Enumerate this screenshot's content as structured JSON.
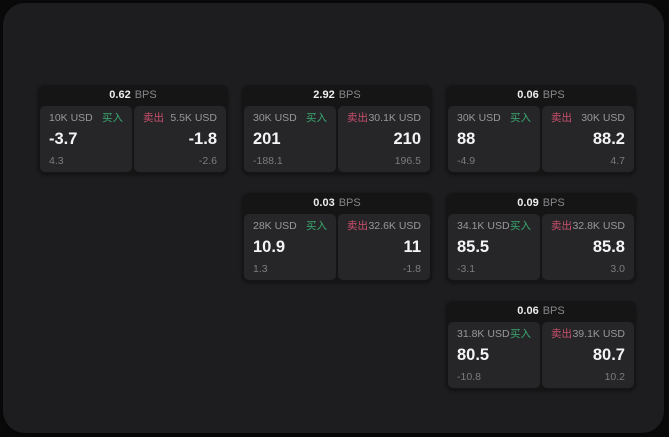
{
  "labels": {
    "buy": "买入",
    "sell": "卖出",
    "bps_suffix": "BPS"
  },
  "colors": {
    "buy_accent": "#3aa970",
    "sell_accent": "#c94f6b",
    "panel_bg": "#1d1d1f",
    "card_bg": "#151516",
    "tile_bg": "#262629",
    "text_primary": "#f4f4f5",
    "text_secondary": "#98989b"
  },
  "cards": [
    {
      "bps": "0.62",
      "grid": {
        "row": 1,
        "col": 1
      },
      "buy": {
        "notional": "10K USD",
        "price": "-3.7",
        "sub": "4.3"
      },
      "sell": {
        "notional": "5.5K USD",
        "price": "-1.8",
        "sub": "-2.6"
      }
    },
    {
      "bps": "2.92",
      "grid": {
        "row": 1,
        "col": 2
      },
      "buy": {
        "notional": "30K USD",
        "price": "201",
        "sub": "-188.1"
      },
      "sell": {
        "notional": "30.1K USD",
        "price": "210",
        "sub": "196.5"
      }
    },
    {
      "bps": "0.06",
      "grid": {
        "row": 1,
        "col": 3
      },
      "buy": {
        "notional": "30K USD",
        "price": "88",
        "sub": "-4.9"
      },
      "sell": {
        "notional": "30K USD",
        "price": "88.2",
        "sub": "4.7"
      }
    },
    {
      "bps": "0.03",
      "grid": {
        "row": 2,
        "col": 2
      },
      "buy": {
        "notional": "28K USD",
        "price": "10.9",
        "sub": "1.3"
      },
      "sell": {
        "notional": "32.6K USD",
        "price": "11",
        "sub": "-1.8"
      }
    },
    {
      "bps": "0.09",
      "grid": {
        "row": 2,
        "col": 3
      },
      "buy": {
        "notional": "34.1K USD",
        "price": "85.5",
        "sub": "-3.1"
      },
      "sell": {
        "notional": "32.8K USD",
        "price": "85.8",
        "sub": "3.0"
      }
    },
    {
      "bps": "0.06",
      "grid": {
        "row": 3,
        "col": 3
      },
      "buy": {
        "notional": "31.8K USD",
        "price": "80.5",
        "sub": "-10.8"
      },
      "sell": {
        "notional": "39.1K USD",
        "price": "80.7",
        "sub": "10.2"
      }
    }
  ]
}
